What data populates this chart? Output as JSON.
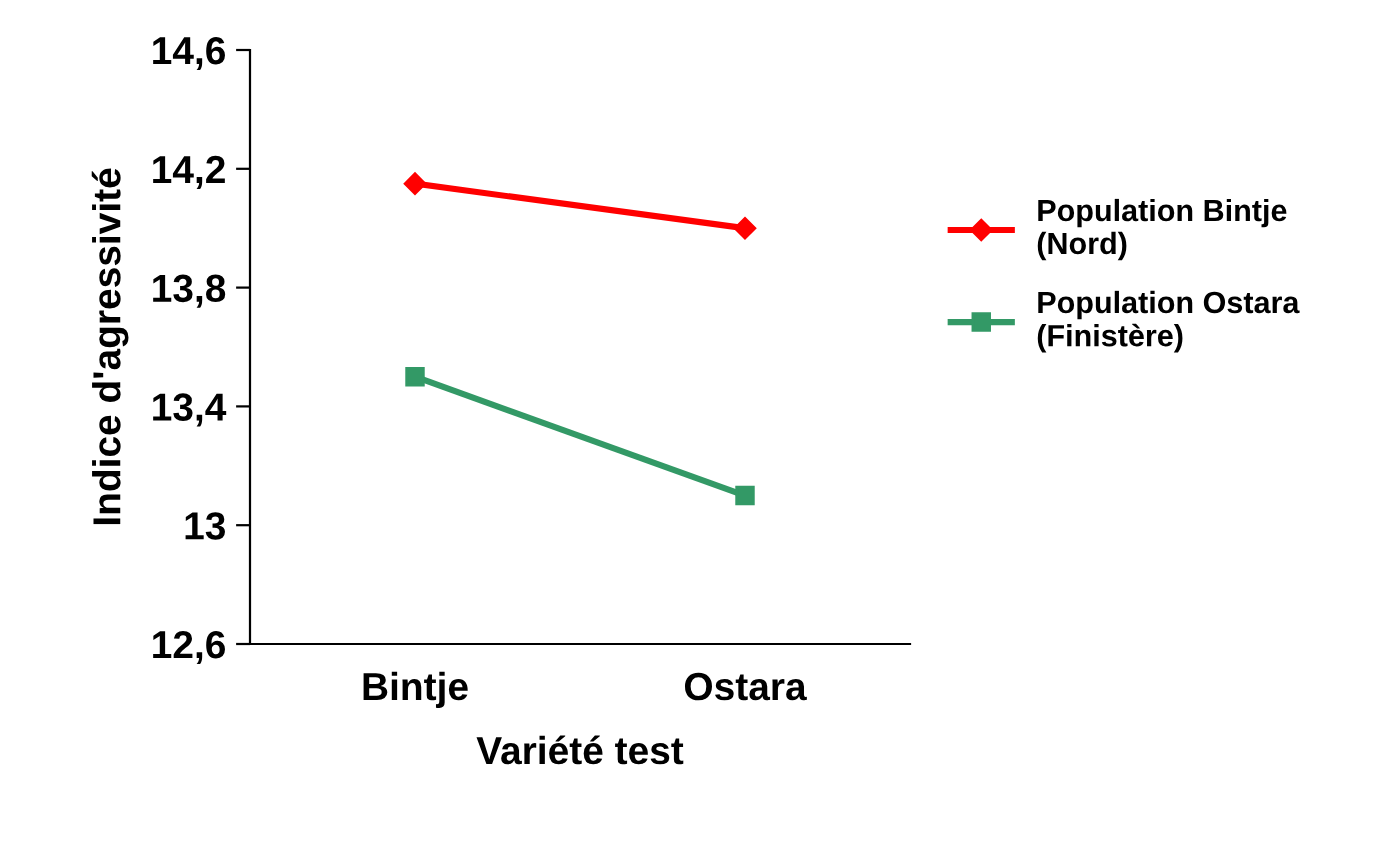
{
  "chart_data": {
    "type": "line",
    "xlabel": "Variété test",
    "ylabel": "Indice d'agressivité",
    "categories": [
      "Bintje",
      "Ostara"
    ],
    "series": [
      {
        "name": "Population Bintje\n(Nord)",
        "color": "#ff0000",
        "marker": "diamond",
        "values": [
          14.15,
          14.0
        ]
      },
      {
        "name": "Population Ostara\n(Finistère)",
        "color": "#339966",
        "marker": "square",
        "values": [
          13.5,
          13.1
        ]
      }
    ],
    "ylim": [
      12.6,
      14.6
    ],
    "yticks": [
      {
        "value": 12.6,
        "label": "12,6"
      },
      13,
      {
        "value": 13.4,
        "label": "13,4"
      },
      {
        "value": 13.8,
        "label": "13,8"
      },
      {
        "value": 14.2,
        "label": "14,2"
      },
      {
        "value": 14.6,
        "label": "14,6"
      }
    ],
    "grid": false,
    "legend": "right",
    "line_style": "solid"
  }
}
